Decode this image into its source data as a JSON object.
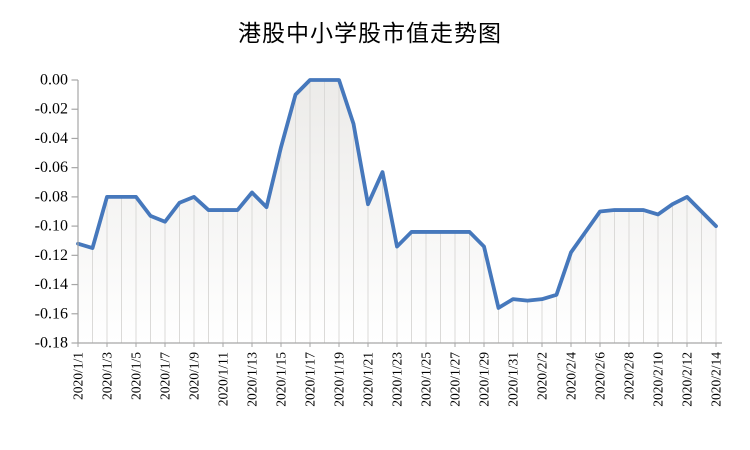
{
  "chart_data": {
    "type": "line",
    "title": "港股中小学股市值走势图",
    "legend": "none",
    "grid": "vertical drop-lines at every data point, no horizontal gridlines",
    "ylim": [
      -0.18,
      0
    ],
    "y_ticks": [
      0,
      -0.02,
      -0.04,
      -0.06,
      -0.08,
      -0.1,
      -0.12,
      -0.14,
      -0.16,
      -0.18
    ],
    "y_tick_labels": [
      "0.00",
      "-0.02",
      "-0.04",
      "-0.06",
      "-0.08",
      "-0.10",
      "-0.12",
      "-0.14",
      "-0.16",
      "-0.18"
    ],
    "x_label_every": 2,
    "x_axis_labels_shown": [
      "2020/1/1",
      "2020/1/3",
      "2020/1/5",
      "2020/1/7",
      "2020/1/9",
      "2020/1/11",
      "2020/1/13",
      "2020/1/15",
      "2020/1/17",
      "2020/1/19",
      "2020/1/21",
      "2020/1/23",
      "2020/1/25",
      "2020/1/27",
      "2020/1/29",
      "2020/1/31",
      "2020/2/2",
      "2020/2/4",
      "2020/2/6",
      "2020/2/8",
      "2020/2/10",
      "2020/2/12",
      "2020/2/14"
    ],
    "x": [
      "2020/1/1",
      "2020/1/2",
      "2020/1/3",
      "2020/1/4",
      "2020/1/5",
      "2020/1/6",
      "2020/1/7",
      "2020/1/8",
      "2020/1/9",
      "2020/1/10",
      "2020/1/11",
      "2020/1/12",
      "2020/1/13",
      "2020/1/14",
      "2020/1/15",
      "2020/1/16",
      "2020/1/17",
      "2020/1/18",
      "2020/1/19",
      "2020/1/20",
      "2020/1/21",
      "2020/1/22",
      "2020/1/23",
      "2020/1/24",
      "2020/1/25",
      "2020/1/26",
      "2020/1/27",
      "2020/1/28",
      "2020/1/29",
      "2020/1/30",
      "2020/1/31",
      "2020/2/1",
      "2020/2/2",
      "2020/2/3",
      "2020/2/4",
      "2020/2/5",
      "2020/2/6",
      "2020/2/7",
      "2020/2/8",
      "2020/2/9",
      "2020/2/10",
      "2020/2/11",
      "2020/2/12",
      "2020/2/13",
      "2020/2/14"
    ],
    "values": [
      -0.112,
      -0.115,
      -0.08,
      -0.08,
      -0.08,
      -0.093,
      -0.097,
      -0.084,
      -0.08,
      -0.089,
      -0.089,
      -0.089,
      -0.077,
      -0.087,
      -0.046,
      -0.01,
      0.0,
      0.0,
      0.0,
      -0.03,
      -0.085,
      -0.063,
      -0.114,
      -0.104,
      -0.104,
      -0.104,
      -0.104,
      -0.104,
      -0.114,
      -0.156,
      -0.15,
      -0.151,
      -0.15,
      -0.147,
      -0.118,
      -0.104,
      -0.09,
      -0.089,
      -0.089,
      -0.089,
      -0.092,
      -0.085,
      -0.08,
      -0.09,
      -0.1
    ],
    "colors": {
      "line": "#4678BC",
      "drop_line": "#DBDAD8",
      "area_fill_top": "#ECEBE9",
      "area_fill_bottom": "#FFFFFF",
      "axis": "#A6A6A6",
      "text": "#000000",
      "background": "#FFFFFF"
    }
  }
}
